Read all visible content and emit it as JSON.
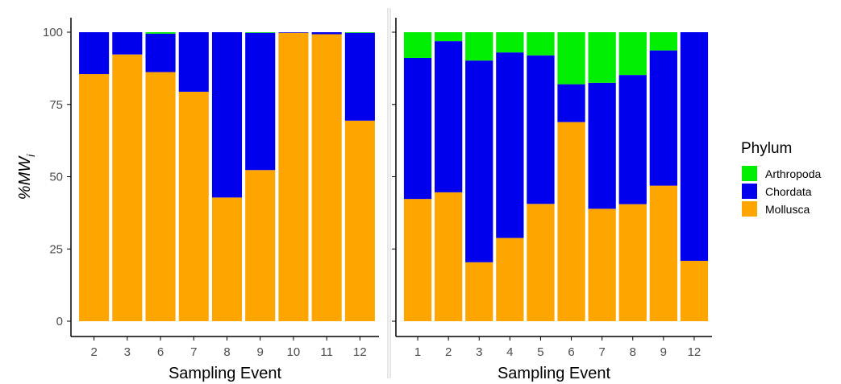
{
  "figure": {
    "ylabel_main": "%MW",
    "ylabel_sub": "i",
    "legend": {
      "title": "Phylum",
      "entries": [
        "Arthropoda",
        "Chordata",
        "Mollusca"
      ]
    },
    "colors": {
      "Arthropoda": "#00ee00",
      "Chordata": "#0000ee",
      "Mollusca": "#ffa500",
      "axis": "#000000",
      "tick_text": "#4d4d4d"
    }
  },
  "chart_data": [
    {
      "type": "bar",
      "stacked": true,
      "xlabel": "Sampling Event",
      "ylabel": "%MWi",
      "ylim": [
        0,
        100
      ],
      "yticks": [
        0,
        25,
        50,
        75,
        100
      ],
      "categories": [
        "2",
        "3",
        "6",
        "7",
        "8",
        "9",
        "10",
        "11",
        "12"
      ],
      "series": [
        {
          "name": "Mollusca",
          "values": [
            85.5,
            92.3,
            86.2,
            79.4,
            42.8,
            52.3,
            99.8,
            99.3,
            69.4
          ]
        },
        {
          "name": "Chordata",
          "values": [
            14.5,
            7.7,
            13.3,
            20.6,
            57.2,
            47.5,
            0.2,
            0.7,
            30.4
          ]
        },
        {
          "name": "Arthropoda",
          "values": [
            0,
            0,
            0.5,
            0,
            0,
            0.2,
            0,
            0,
            0.2
          ]
        }
      ]
    },
    {
      "type": "bar",
      "stacked": true,
      "xlabel": "Sampling Event",
      "ylabel": "",
      "ylim": [
        0,
        100
      ],
      "yticks": [
        0,
        25,
        50,
        75,
        100
      ],
      "categories": [
        "1",
        "2",
        "3",
        "4",
        "5",
        "6",
        "7",
        "8",
        "9",
        "12"
      ],
      "series": [
        {
          "name": "Mollusca",
          "values": [
            42.3,
            44.6,
            20.4,
            28.8,
            40.6,
            68.9,
            38.9,
            40.5,
            46.9,
            20.9
          ]
        },
        {
          "name": "Chordata",
          "values": [
            48.8,
            52.3,
            69.8,
            64.2,
            51.4,
            13.1,
            43.6,
            44.7,
            46.8,
            79.1
          ]
        },
        {
          "name": "Arthropoda",
          "values": [
            8.9,
            3.1,
            9.8,
            7.0,
            8.0,
            18.0,
            17.5,
            14.8,
            6.3,
            0
          ]
        }
      ]
    }
  ]
}
